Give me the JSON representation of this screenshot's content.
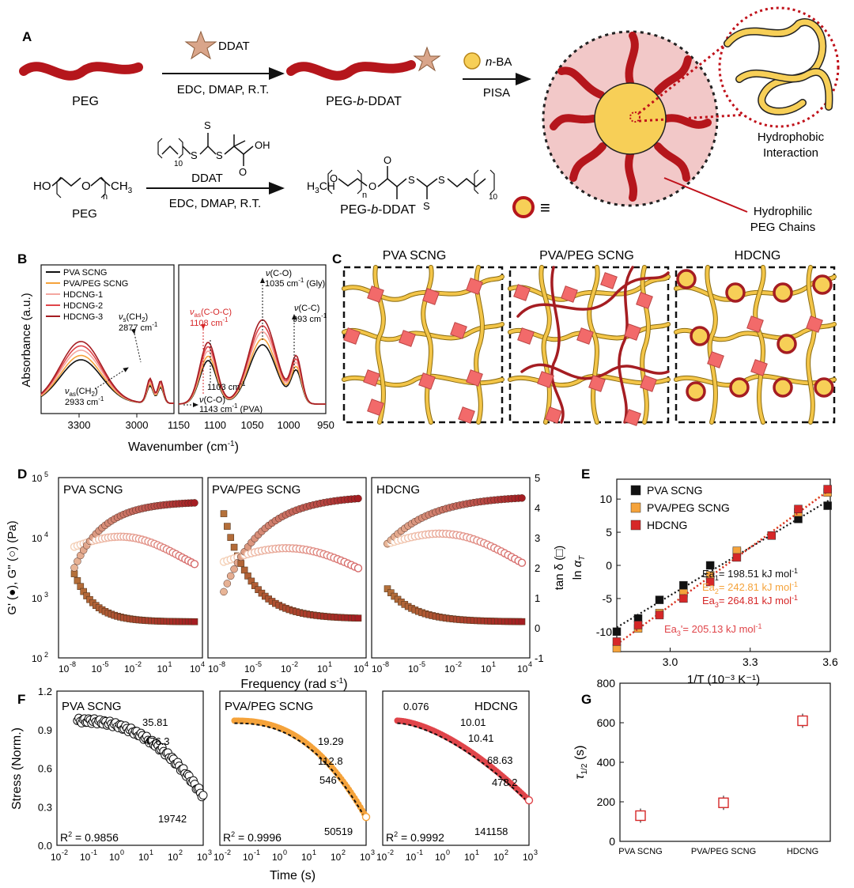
{
  "panels": {
    "A": "A",
    "B": "B",
    "C": "C",
    "D": "D",
    "E": "E",
    "F": "F",
    "G": "G"
  },
  "panelA": {
    "reagent1": "DDAT",
    "cond1": "EDC, DMAP, R.T.",
    "peg": "PEG",
    "pegb": "PEG-",
    "b": "b",
    "ddat": "-DDAT",
    "reagent2": "n",
    "reagent2b": "-BA",
    "pisa": "PISA",
    "hydrophobic1": "Hydrophobic",
    "hydrophobic2": "Interaction",
    "hydrophilic1": "Hydrophilic",
    "hydrophilic2": "PEG Chains",
    "ho": "HO",
    "ch3": "CH",
    "sub3": "3",
    "n": "n",
    "ddat_label": "DDAT",
    "h3c": "H",
    "ten": "10",
    "oh": "OH",
    "o": "O",
    "s": "S",
    "equiv": "≡"
  },
  "panelB": {
    "legend": [
      "PVA SCNG",
      "PVA/PEG SCNG",
      "HDCNG-1",
      "HDCNG-2",
      "HDCNG-3"
    ],
    "colors": [
      "#111111",
      "#f5a33b",
      "#f4a7a0",
      "#e0454a",
      "#a51d22"
    ],
    "ylabel": "Absorbance (a.u.)",
    "xlabel": "Wavenumber (cm",
    "xlabel_sup": "-1",
    "xlabel_end": ")",
    "ticks_left": [
      "3300",
      "3000"
    ],
    "ticks_right": [
      "1150",
      "1100",
      "1050",
      "1000",
      "950"
    ],
    "ann_vs": "(CH",
    "ann_vs_val": "2877 cm",
    "ann_vas_val": "2933 cm",
    "ann_coc": "(C-O-C)",
    "ann_coc_val": "1108 cm",
    "ann_1103": "1103 cm",
    "ann_1143": "1143 cm",
    "ann_1143_end": " (PVA)",
    "ann_co": "(C-O)",
    "ann_1035": "1035 cm",
    "ann_1035_end": " (Gly)",
    "ann_cc": "(C-C)",
    "ann_993": "993 cm"
  },
  "panelC": {
    "titles": [
      "PVA SCNG",
      "PVA/PEG SCNG",
      "HDCNG"
    ]
  },
  "panelD": {
    "titles": [
      "PVA SCNG",
      "PVA/PEG  SCNG",
      "HDCNG"
    ],
    "yticks_left": [
      "10",
      "10",
      "10",
      "10"
    ],
    "yexp_left": [
      "5",
      "4",
      "3",
      "2"
    ],
    "yticks_right": [
      "5",
      "4",
      "3",
      "2",
      "1",
      "0",
      "-1"
    ],
    "xticks": [
      "10",
      "10",
      "10",
      "10",
      "10"
    ],
    "xexp": [
      "-8",
      "-5",
      "-2",
      "1",
      "4"
    ],
    "ylabel_left": "G' (●), G'' (○) (Pa)",
    "ylabel_right": "tan δ (□)",
    "xlabel": "Frequency (rad s",
    "xlabel_sup": "-1",
    "xlabel_end": ")"
  },
  "chart_data": [
    {
      "type": "scatter",
      "panel": "E",
      "xlabel": "1/T (10⁻³ K⁻¹)",
      "ylabel": "ln αT",
      "xlim": [
        2.8,
        3.6
      ],
      "ylim": [
        -13,
        13
      ],
      "xticks": [
        "3.0",
        "3.3",
        "3.6"
      ],
      "yticks": [
        "10",
        "5",
        "0",
        "-5",
        "-10"
      ],
      "x": [
        2.8,
        2.88,
        2.96,
        3.05,
        3.15,
        3.25,
        3.38,
        3.48,
        3.59
      ],
      "series": [
        {
          "name": "PVA SCNG",
          "color": "#111111",
          "values": [
            -10.0,
            -8.0,
            -5.2,
            -3.0,
            0.0,
            2.0,
            4.5,
            7.0,
            9.0
          ]
        },
        {
          "name": "PVA/PEG SCNG",
          "color": "#f5a33b",
          "values": [
            -12.5,
            -9.5,
            -7.2,
            -4.2,
            -1.5,
            2.2,
            4.5,
            8.0,
            11.0
          ]
        },
        {
          "name": "HDCNG",
          "color": "#d62728",
          "values": [
            -11.5,
            -9.0,
            -7.5,
            -5.0,
            -2.5,
            1.2,
            4.5,
            8.5,
            11.5
          ]
        }
      ],
      "annotations": [
        {
          "text": "Ea",
          "sub": "1",
          "rest": "= 198.51 kJ mol",
          "color": "#111111"
        },
        {
          "text": "Ea",
          "sub": "2",
          "rest": "= 242.81 kJ mol",
          "color": "#f5a33b"
        },
        {
          "text": "Ea",
          "sub": "3",
          "rest": "= 264.81 kJ mol",
          "color": "#d62728"
        },
        {
          "text": "Ea",
          "sub": "3",
          "rest": "'= 205.13 kJ mol",
          "color": "#e0454a"
        }
      ]
    },
    {
      "type": "scatter",
      "panel": "G",
      "ylabel": "τ1/2 (s)",
      "categories": [
        "PVA SCNG",
        "PVA/PEG SCNG",
        "HDCNG"
      ],
      "values": [
        130,
        195,
        610
      ],
      "ylim": [
        0,
        800
      ],
      "yticks": [
        "800",
        "600",
        "400",
        "200",
        "0"
      ]
    }
  ],
  "panelF": {
    "titles": [
      "PVA SCNG",
      "PVA/PEG  SCNG",
      "HDCNG"
    ],
    "r2": [
      "R",
      "R",
      "R"
    ],
    "r2val": [
      " = 0.9856",
      " = 0.9996",
      " = 0.9992"
    ],
    "numbers1": [
      "35.81",
      "476.3",
      "19742"
    ],
    "numbers2": [
      "19.29",
      "112.8",
      "546",
      "50519"
    ],
    "numbers3": [
      "0.076",
      "10.01",
      "10.41",
      "68.63",
      "478.2",
      "141158"
    ],
    "yticks": [
      "1.2",
      "0.9",
      "0.6",
      "0.3",
      "0.0"
    ],
    "xexp": [
      "-2",
      "-1",
      "0",
      "1",
      "2",
      "3"
    ],
    "ylabel": "Stress (Norm.)",
    "xlabel": "Time (s)"
  }
}
